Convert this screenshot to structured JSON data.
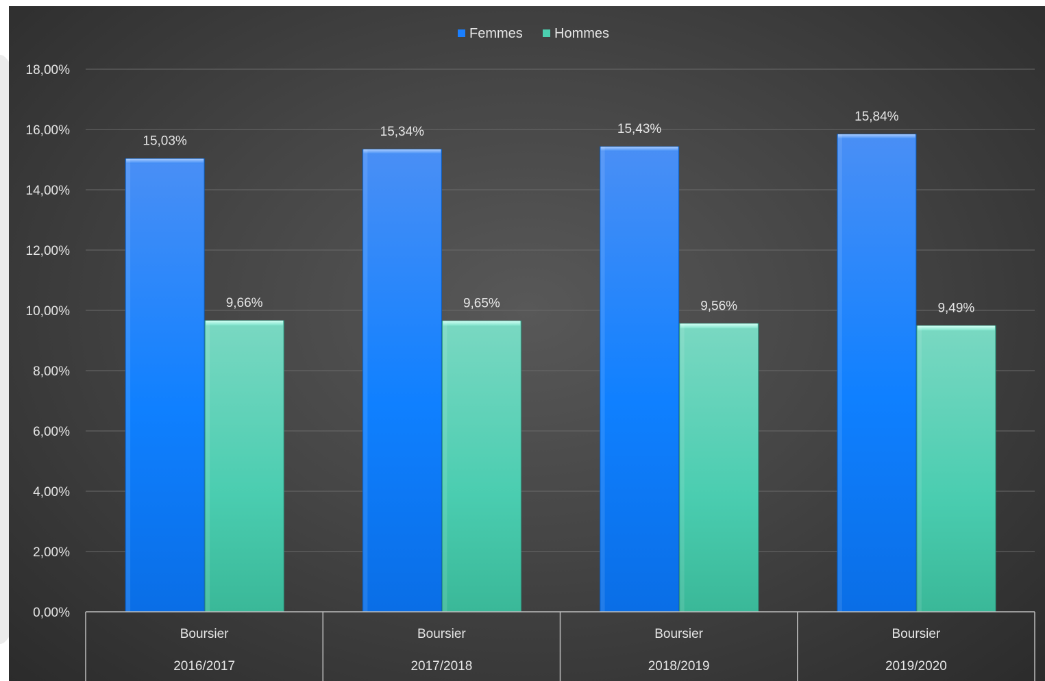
{
  "chart_data": {
    "type": "bar",
    "categories": [
      {
        "label": "Boursier",
        "year": "2016/2017"
      },
      {
        "label": "Boursier",
        "year": "2017/2018"
      },
      {
        "label": "Boursier",
        "year": "2018/2019"
      },
      {
        "label": "Boursier",
        "year": "2019/2020"
      }
    ],
    "series": [
      {
        "name": "Femmes",
        "values": [
          15.03,
          15.34,
          15.43,
          15.84
        ],
        "labels": [
          "15,03%",
          "15,34%",
          "15,43%",
          "15,84%"
        ],
        "color": "#1a7fff"
      },
      {
        "name": "Hommes",
        "values": [
          9.66,
          9.65,
          9.56,
          9.49
        ],
        "labels": [
          "9,66%",
          "9,65%",
          "9,56%",
          "9,49%"
        ],
        "color": "#4cd0b0"
      }
    ],
    "ylim": [
      0,
      18
    ],
    "yticks": [
      "0,00%",
      "2,00%",
      "4,00%",
      "6,00%",
      "8,00%",
      "10,00%",
      "12,00%",
      "14,00%",
      "16,00%",
      "18,00%"
    ],
    "legend": "top-center",
    "grid": true
  }
}
